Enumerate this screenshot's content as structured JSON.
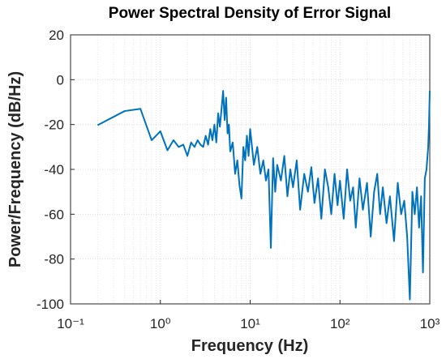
{
  "chart_data": {
    "type": "line",
    "title": "Power Spectral Density of Error Signal",
    "xlabel": "Frequency (Hz)",
    "ylabel": "Power/Frequency (dB/Hz)",
    "xscale": "log",
    "grid": true,
    "minor_grid": true,
    "xlim": [
      0.1,
      1000
    ],
    "ylim": [
      -100,
      20
    ],
    "xticks": [
      {
        "value": 0.1,
        "label": "10⁻¹"
      },
      {
        "value": 1,
        "label": "10⁰"
      },
      {
        "value": 10,
        "label": "10¹"
      },
      {
        "value": 100,
        "label": "10²"
      },
      {
        "value": 1000,
        "label": "10³"
      }
    ],
    "yticks": [
      -100,
      -80,
      -60,
      -40,
      -20,
      0,
      20
    ],
    "series": [
      {
        "color": "#0072bd",
        "x": [
          0.2,
          0.4,
          0.6,
          0.8,
          1.0,
          1.2,
          1.4,
          1.6,
          1.8,
          2.0,
          2.2,
          2.4,
          2.6,
          2.8,
          3.0,
          3.2,
          3.4,
          3.6,
          3.8,
          4.0,
          4.2,
          4.4,
          4.6,
          4.8,
          5.0,
          5.2,
          5.4,
          5.6,
          5.8,
          6.0,
          6.4,
          6.8,
          7.2,
          7.6,
          8,
          8.4,
          8.8,
          9.2,
          9.6,
          10,
          11,
          12,
          13,
          14,
          15,
          16,
          17,
          18,
          19,
          20,
          22,
          24,
          26,
          28,
          30,
          33,
          36,
          40,
          44,
          48,
          52,
          57,
          62,
          68,
          74,
          80,
          87,
          94,
          100,
          110,
          120,
          130,
          140,
          150,
          165,
          180,
          200,
          220,
          240,
          260,
          280,
          300,
          330,
          360,
          400,
          440,
          480,
          520,
          560,
          600,
          640,
          680,
          720,
          760,
          800,
          840,
          880,
          920,
          960,
          980,
          1000
        ],
        "values": [
          -20.3,
          -14,
          -13,
          -27,
          -23,
          -31.5,
          -27,
          -30,
          -29,
          -34,
          -28,
          -30,
          -27,
          -29,
          -30,
          -25,
          -29,
          -22,
          -27,
          -20,
          -28,
          -15,
          -21,
          -13,
          -5,
          -18,
          -8,
          -24,
          -20,
          -32,
          -28,
          -42,
          -36,
          -47,
          -53,
          -30,
          -36,
          -25,
          -34,
          -22,
          -38,
          -30,
          -42,
          -36,
          -45,
          -40,
          -75,
          -35,
          -50,
          -38,
          -45,
          -34,
          -52,
          -40,
          -48,
          -36,
          -58,
          -42,
          -50,
          -39,
          -55,
          -44,
          -62,
          -40,
          -48,
          -60,
          -42,
          -56,
          -45,
          -62,
          -40,
          -54,
          -48,
          -66,
          -44,
          -58,
          -46,
          -70,
          -50,
          -42,
          -60,
          -48,
          -64,
          -52,
          -72,
          -46,
          -60,
          -54,
          -70,
          -98,
          -50,
          -60,
          -48,
          -66,
          -52,
          -86,
          -44,
          -40,
          -30,
          -20,
          -5
        ]
      }
    ]
  }
}
